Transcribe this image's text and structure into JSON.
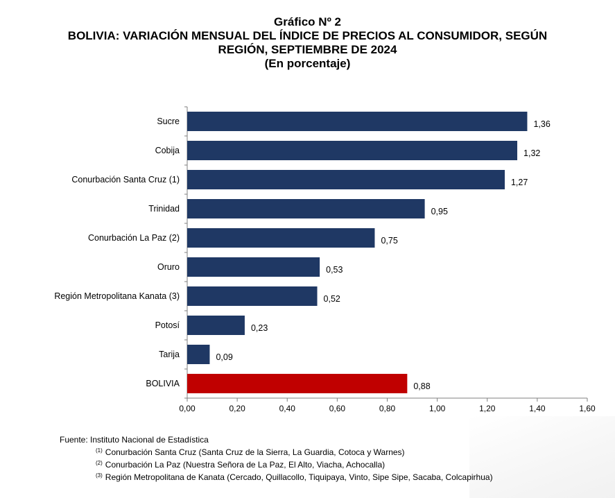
{
  "titles": {
    "line1": "Gráfico Nº 2",
    "line2": "BOLIVIA: VARIACIÓN MENSUAL DEL ÍNDICE DE PRECIOS AL CONSUMIDOR, SEGÚN",
    "line3": "REGIÓN, SEPTIEMBRE DE 2024",
    "line4": "(En porcentaje)"
  },
  "colors": {
    "bar": "#1f3864",
    "highlight": "#c00000",
    "axis": "#7f7f7f"
  },
  "chart_data": {
    "type": "bar",
    "orientation": "horizontal",
    "categories": [
      "Sucre",
      "Cobija",
      "Conurbación Santa Cruz (1)",
      "Trinidad",
      "Conurbación La Paz (2)",
      "Oruro",
      "Región Metropolitana Kanata (3)",
      "Potosí",
      "Tarija",
      "BOLIVIA"
    ],
    "values": [
      1.36,
      1.32,
      1.27,
      0.95,
      0.75,
      0.53,
      0.52,
      0.23,
      0.09,
      0.88
    ],
    "value_labels": [
      "1,36",
      "1,32",
      "1,27",
      "0,95",
      "0,75",
      "0,53",
      "0,52",
      "0,23",
      "0,09",
      "0,88"
    ],
    "highlight_category": "BOLIVIA",
    "xlim": [
      0,
      1.6
    ],
    "xticks": [
      0,
      0.2,
      0.4,
      0.6,
      0.8,
      1.0,
      1.2,
      1.4,
      1.6
    ],
    "xtick_labels": [
      "0,00",
      "0,20",
      "0,40",
      "0,60",
      "0,80",
      "1,00",
      "1,20",
      "1,40",
      "1,60"
    ],
    "grid": false,
    "legend": "none"
  },
  "notes": {
    "source": "Fuente: Instituto Nacional de Estadística",
    "items": [
      {
        "marker": "(1)",
        "text": "Conurbación Santa Cruz (Santa Cruz de la Sierra, La Guardia, Cotoca y Warnes)"
      },
      {
        "marker": "(2)",
        "text": "Conurbación La Paz (Nuestra Señora de La Paz, El Alto, Viacha, Achocalla)"
      },
      {
        "marker": "(3)",
        "text": "Región Metropolitana de Kanata (Cercado, Quillacollo, Tiquipaya, Vinto, Sipe Sipe, Sacaba, Colcapirhua)"
      }
    ]
  }
}
